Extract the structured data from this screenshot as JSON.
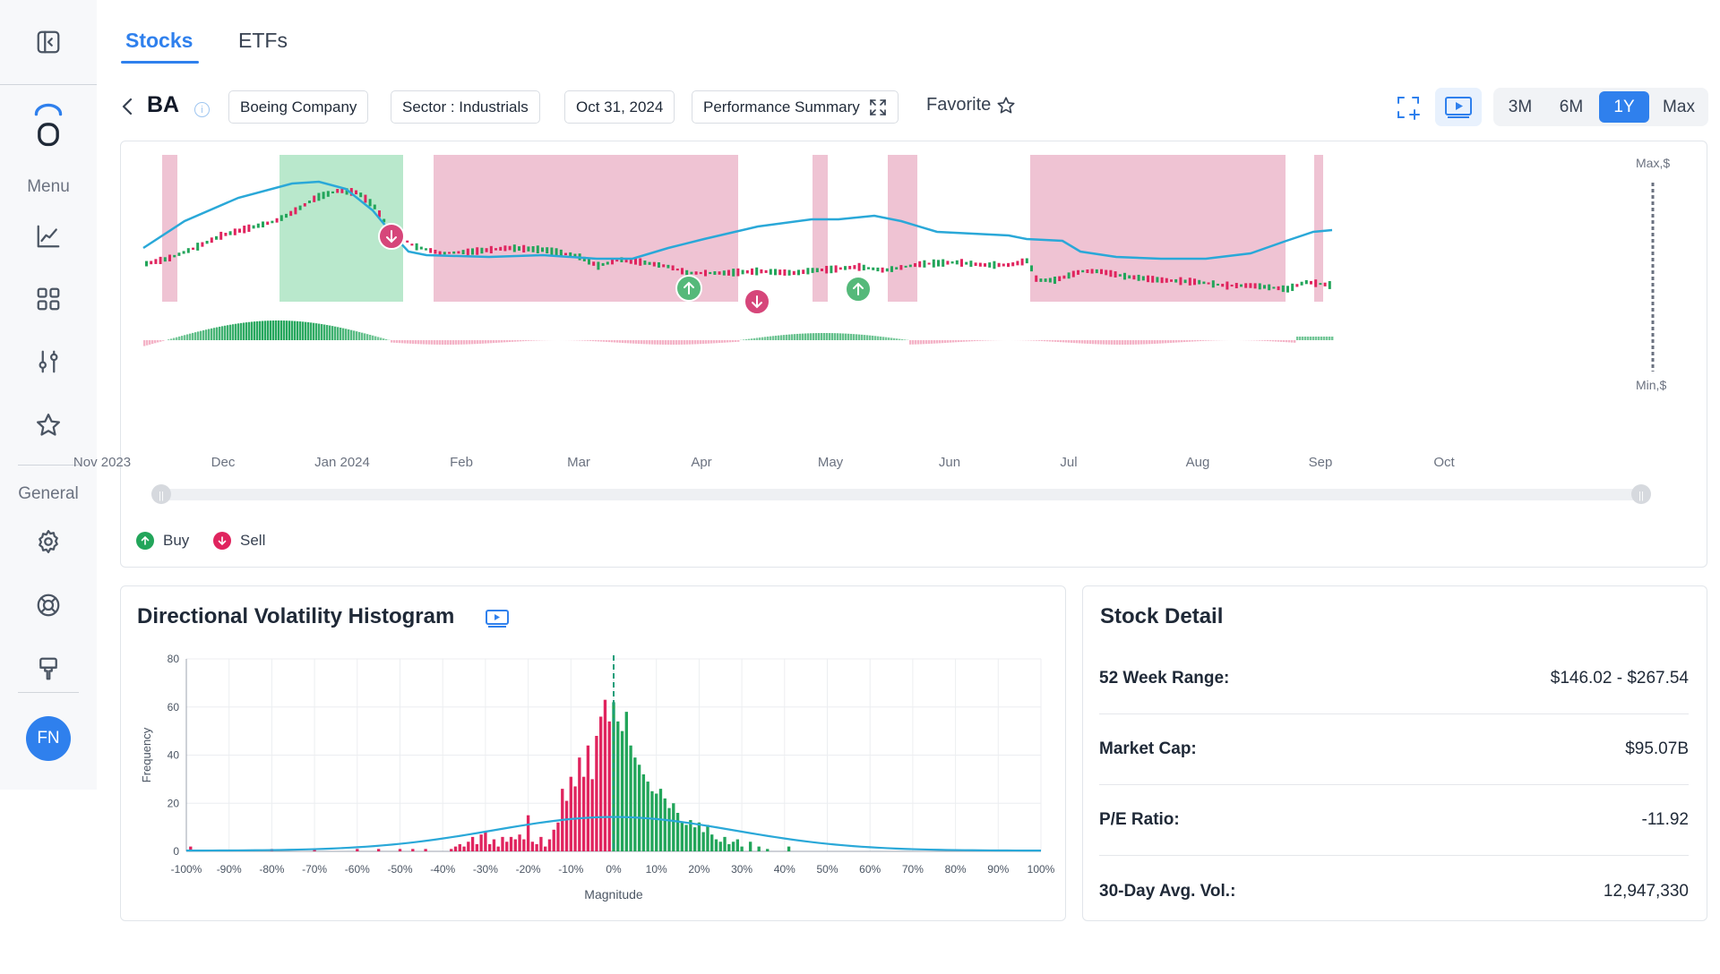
{
  "sidebar": {
    "menu_label": "Menu",
    "general_label": "General",
    "avatar_initials": "FN",
    "icons": [
      "collapse-sidebar-icon",
      "brand-logo",
      "chart-line-icon",
      "grid-icon",
      "sliders-icon",
      "star-icon",
      "gear-icon",
      "support-icon",
      "paint-brush-icon"
    ]
  },
  "tabs": [
    {
      "label": "Stocks",
      "active": true
    },
    {
      "label": "ETFs",
      "active": false
    }
  ],
  "toolbar": {
    "ticker": "BA",
    "company": "Boeing Company",
    "sector": "Sector : Industrials",
    "date": "Oct 31, 2024",
    "performance": "Performance Summary",
    "favorite": "Favorite",
    "ranges": [
      "3M",
      "6M",
      "1Y",
      "Max"
    ],
    "active_range": "1Y"
  },
  "main_chart": {
    "max_label": "Max,$",
    "min_label": "Min,$",
    "months": [
      "Nov 2023",
      "Dec",
      "Jan 2024",
      "Feb",
      "Mar",
      "Apr",
      "May",
      "Jun",
      "Jul",
      "Aug",
      "Sep",
      "Oct"
    ],
    "legend": {
      "buy": "Buy",
      "sell": "Sell"
    },
    "colors": {
      "up": "#22a55a",
      "down": "#e0245e",
      "line": "#2aa8d8",
      "green_zone": "#b9e8cc",
      "red_zone": "#efc3d3"
    }
  },
  "histogram": {
    "title": "Directional Volatility Histogram",
    "chart_data": {
      "type": "bar",
      "xlabel": "Magnitude",
      "ylabel": "Frequency",
      "x_ticks": [
        "-100%",
        "-90%",
        "-80%",
        "-70%",
        "-60%",
        "-50%",
        "-40%",
        "-30%",
        "-20%",
        "-10%",
        "0%",
        "10%",
        "20%",
        "30%",
        "40%",
        "50%",
        "60%",
        "70%",
        "80%",
        "90%",
        "100%"
      ],
      "y_ticks": [
        "0",
        "20",
        "40",
        "60",
        "80"
      ],
      "ylim": [
        0,
        80
      ],
      "xlim": [
        -100,
        100
      ],
      "series": [
        {
          "color": "#e0245e",
          "x": [
            -99,
            -80,
            -70,
            -60,
            -55,
            -50,
            -47,
            -44,
            -38,
            -37,
            -36,
            -35,
            -34,
            -33,
            -32,
            -31,
            -30,
            -29,
            -28,
            -27,
            -26,
            -25,
            -24,
            -23,
            -22,
            -21,
            -20,
            -19,
            -18,
            -17,
            -16,
            -15,
            -14,
            -13,
            -12,
            -11,
            -10,
            -9,
            -8,
            -7,
            -6,
            -5,
            -4,
            -3,
            -2,
            -1
          ],
          "values": [
            2,
            1,
            1,
            1,
            1,
            1,
            1,
            1,
            1,
            2,
            3,
            2,
            4,
            6,
            3,
            7,
            8,
            3,
            5,
            2,
            6,
            4,
            6,
            5,
            7,
            5,
            15,
            4,
            3,
            6,
            2,
            5,
            9,
            12,
            26,
            21,
            31,
            27,
            39,
            31,
            44,
            30,
            48,
            56,
            63,
            54
          ]
        },
        {
          "color": "#22a55a",
          "x": [
            0,
            1,
            2,
            3,
            4,
            5,
            6,
            7,
            8,
            9,
            10,
            11,
            12,
            13,
            14,
            15,
            16,
            17,
            18,
            19,
            20,
            21,
            22,
            23,
            24,
            25,
            26,
            27,
            28,
            29,
            30,
            32,
            34,
            36,
            41
          ],
          "values": [
            62,
            54,
            50,
            58,
            44,
            39,
            36,
            32,
            29,
            25,
            24,
            26,
            22,
            18,
            20,
            16,
            12,
            11,
            13,
            10,
            12,
            8,
            11,
            7,
            5,
            4,
            6,
            3,
            4,
            5,
            2,
            4,
            2,
            1,
            2
          ]
        }
      ],
      "normal_curve_peak": 14
    }
  },
  "stock_detail": {
    "title": "Stock Detail",
    "rows": [
      {
        "key": "52 Week Range:",
        "value": "$146.02 - $267.54"
      },
      {
        "key": "Market Cap:",
        "value": "$95.07B"
      },
      {
        "key": "P/E Ratio:",
        "value": "-11.92"
      },
      {
        "key": "30-Day Avg. Vol.:",
        "value": "12,947,330"
      }
    ]
  }
}
